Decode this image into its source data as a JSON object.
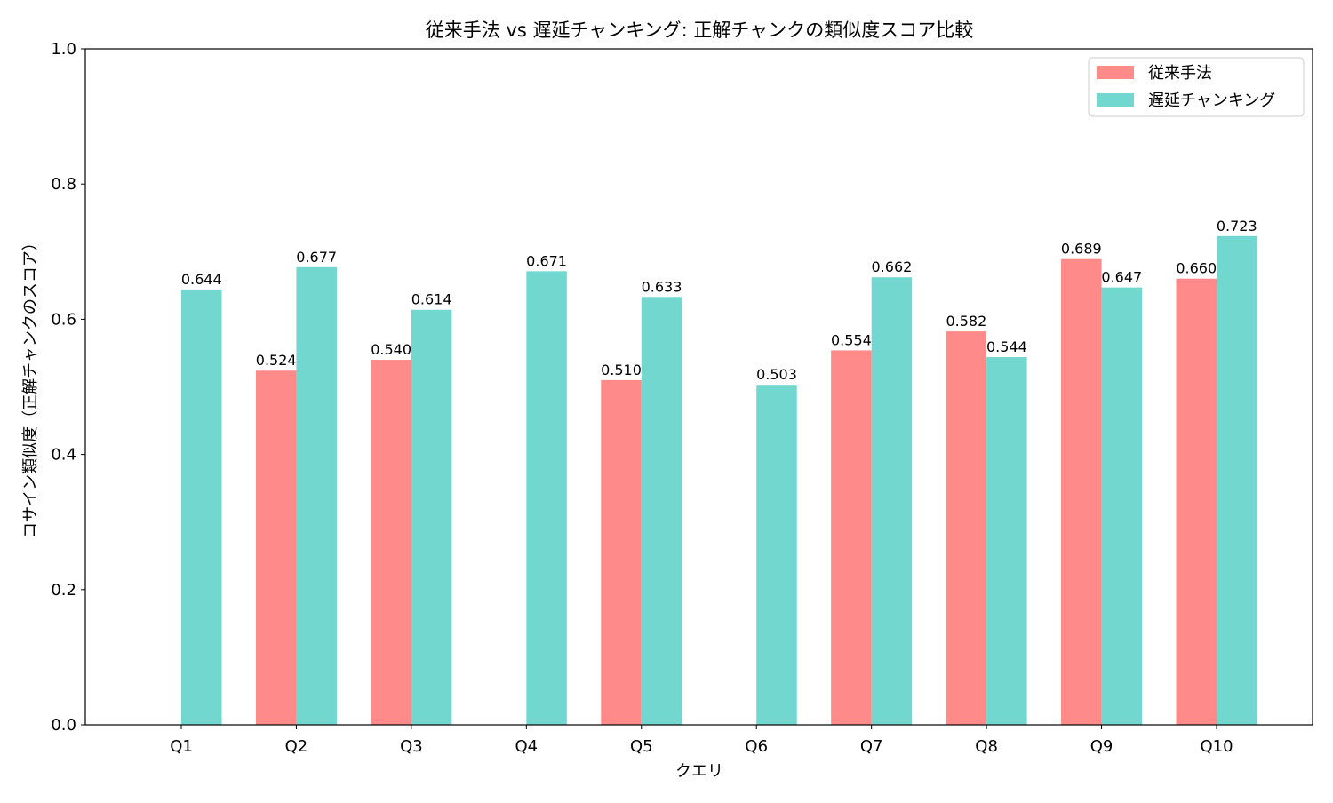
{
  "chart_data": {
    "type": "bar",
    "title": "従来手法 vs 遅延チャンキング: 正解チャンクの類似度スコア比較",
    "xlabel": "クエリ",
    "ylabel": "コサイン類似度（正解チャンクのスコア）",
    "categories": [
      "Q1",
      "Q2",
      "Q3",
      "Q4",
      "Q5",
      "Q6",
      "Q7",
      "Q8",
      "Q9",
      "Q10"
    ],
    "ylim": [
      0,
      1.0
    ],
    "yticks": [
      "0.0",
      "0.2",
      "0.4",
      "0.6",
      "0.8",
      "1.0"
    ],
    "grid": false,
    "legend_position": "top-right",
    "series": [
      {
        "name": "従来手法",
        "color": "#ff8a8a",
        "values": [
          null,
          0.524,
          0.54,
          null,
          0.51,
          null,
          0.554,
          0.582,
          0.689,
          0.66
        ],
        "labels": [
          "",
          "0.524",
          "0.540",
          "",
          "0.510",
          "",
          "0.554",
          "0.582",
          "0.689",
          "0.660"
        ]
      },
      {
        "name": "遅延チャンキング",
        "color": "#72d7cf",
        "values": [
          0.644,
          0.677,
          0.614,
          0.671,
          0.633,
          0.503,
          0.662,
          0.544,
          0.647,
          0.723
        ],
        "labels": [
          "0.644",
          "0.677",
          "0.614",
          "0.671",
          "0.633",
          "0.503",
          "0.662",
          "0.544",
          "0.647",
          "0.723"
        ]
      }
    ]
  }
}
